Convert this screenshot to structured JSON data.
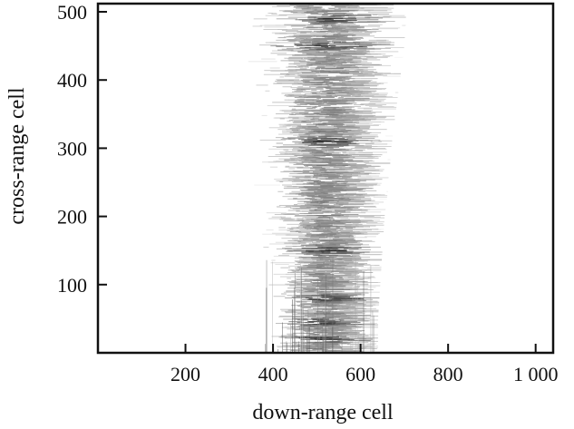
{
  "chart_data": {
    "type": "heatmap",
    "title": "",
    "xlabel": "down-range cell",
    "ylabel": "cross-range cell",
    "xlim": [
      0,
      1040
    ],
    "ylim": [
      0,
      512
    ],
    "xticks": [
      {
        "value": 200,
        "label": "200"
      },
      {
        "value": 400,
        "label": "400"
      },
      {
        "value": 600,
        "label": "600"
      },
      {
        "value": 800,
        "label": "800"
      },
      {
        "value": 1000,
        "label": "1 000"
      }
    ],
    "yticks": [
      {
        "value": 100,
        "label": "100"
      },
      {
        "value": 200,
        "label": "200"
      },
      {
        "value": 300,
        "label": "300"
      },
      {
        "value": 400,
        "label": "400"
      },
      {
        "value": 500,
        "label": "500"
      }
    ],
    "colormap": "grayscale",
    "grid": false,
    "intensity_profile": {
      "cross_range": [
        0,
        50,
        100,
        150,
        200,
        250,
        300,
        350,
        400,
        450,
        500
      ],
      "down_range_min": [
        375,
        375,
        370,
        365,
        360,
        355,
        350,
        345,
        340,
        335,
        330
      ],
      "down_range_max": [
        640,
        640,
        645,
        650,
        655,
        665,
        670,
        680,
        690,
        700,
        705
      ],
      "dense_center": [
        490,
        490,
        495,
        500,
        500,
        500,
        500,
        500,
        500,
        505,
        505
      ]
    },
    "bright_bands_cross_range": [
      20,
      45,
      80,
      150,
      310,
      450,
      490
    ]
  }
}
